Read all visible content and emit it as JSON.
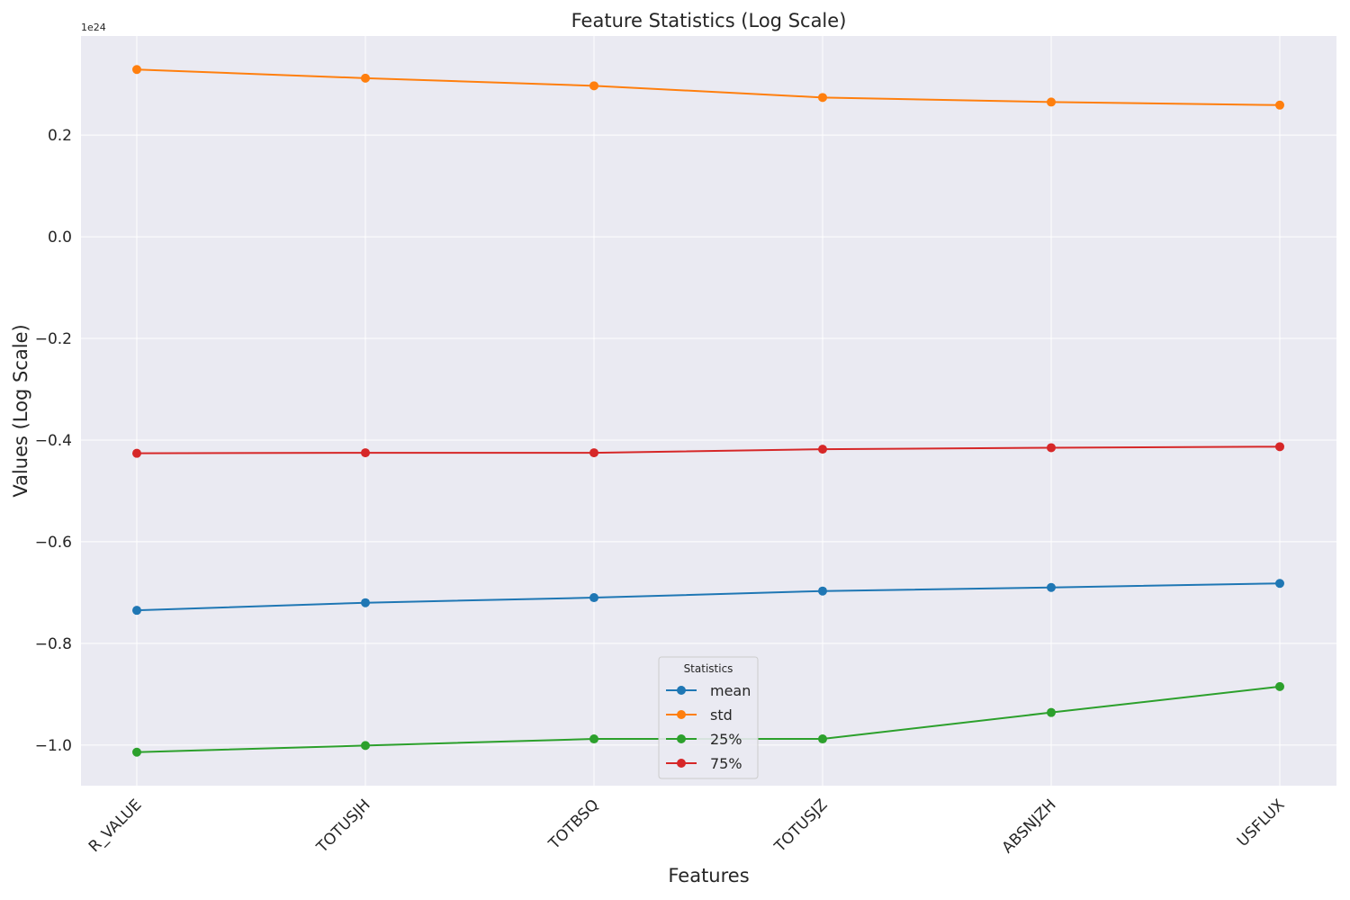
{
  "chart_data": {
    "type": "line",
    "title": "Feature Statistics (Log Scale)",
    "xlabel": "Features",
    "ylabel": "Values (Log Scale)",
    "y_offset_label": "1e24",
    "categories": [
      "R_VALUE",
      "TOTUSJH",
      "TOTBSQ",
      "TOTUSJZ",
      "ABSNJZH",
      "USFLUX"
    ],
    "yticks": [
      "0.2",
      "0.0",
      "−0.2",
      "−0.4",
      "−0.6",
      "−0.8",
      "−1.0"
    ],
    "ytick_values": [
      0.2,
      0.0,
      -0.2,
      -0.4,
      -0.6,
      -0.8,
      -1.0
    ],
    "ylim": [
      -1.08,
      0.395
    ],
    "grid": true,
    "legend": {
      "title": "Statistics",
      "placement": "lower-center"
    },
    "series": [
      {
        "name": "mean",
        "color": "#1f77b4",
        "values": [
          -0.735,
          -0.72,
          -0.71,
          -0.697,
          -0.69,
          -0.682
        ]
      },
      {
        "name": "std",
        "color": "#ff7f0e",
        "values": [
          0.329,
          0.312,
          0.297,
          0.274,
          0.265,
          0.259
        ]
      },
      {
        "name": "25%",
        "color": "#2ca02c",
        "values": [
          -1.014,
          -1.001,
          -0.988,
          -0.988,
          -0.936,
          -0.885
        ]
      },
      {
        "name": "75%",
        "color": "#d62728",
        "values": [
          -0.426,
          -0.425,
          -0.425,
          -0.418,
          -0.415,
          -0.413
        ]
      }
    ]
  }
}
